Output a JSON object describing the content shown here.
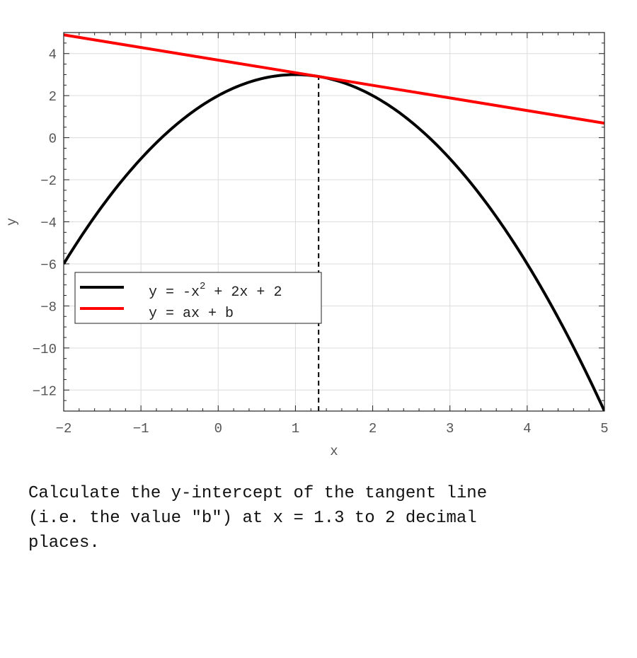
{
  "chart_data": {
    "type": "line",
    "title": "",
    "xlabel": "x",
    "ylabel": "y",
    "xlim": [
      -2,
      5
    ],
    "ylim": [
      -13,
      5
    ],
    "xticks": [
      -2,
      -1,
      0,
      1,
      2,
      3,
      4,
      5
    ],
    "yticks": [
      4,
      2,
      0,
      -2,
      -4,
      -6,
      -8,
      -10,
      -12
    ],
    "grid": true,
    "legend_position": "center-left",
    "series": [
      {
        "name": "y = -x^2 + 2x + 2",
        "legend_main": "y = -x",
        "legend_sup": "2",
        "legend_rest": " + 2x + 2",
        "color": "#000000",
        "function": {
          "a2": -1,
          "a1": 2,
          "a0": 2
        }
      },
      {
        "name": "y = ax + b",
        "color": "#ff0000",
        "function": {
          "a1": -0.6,
          "a0": 3.69
        }
      }
    ],
    "marker_line": {
      "x": 1.3,
      "style": "dashed",
      "color": "#000000"
    }
  },
  "question": "Calculate the y-intercept of the tangent line\n(i.e. the value \"b\") at x = 1.3 to 2 decimal\nplaces."
}
